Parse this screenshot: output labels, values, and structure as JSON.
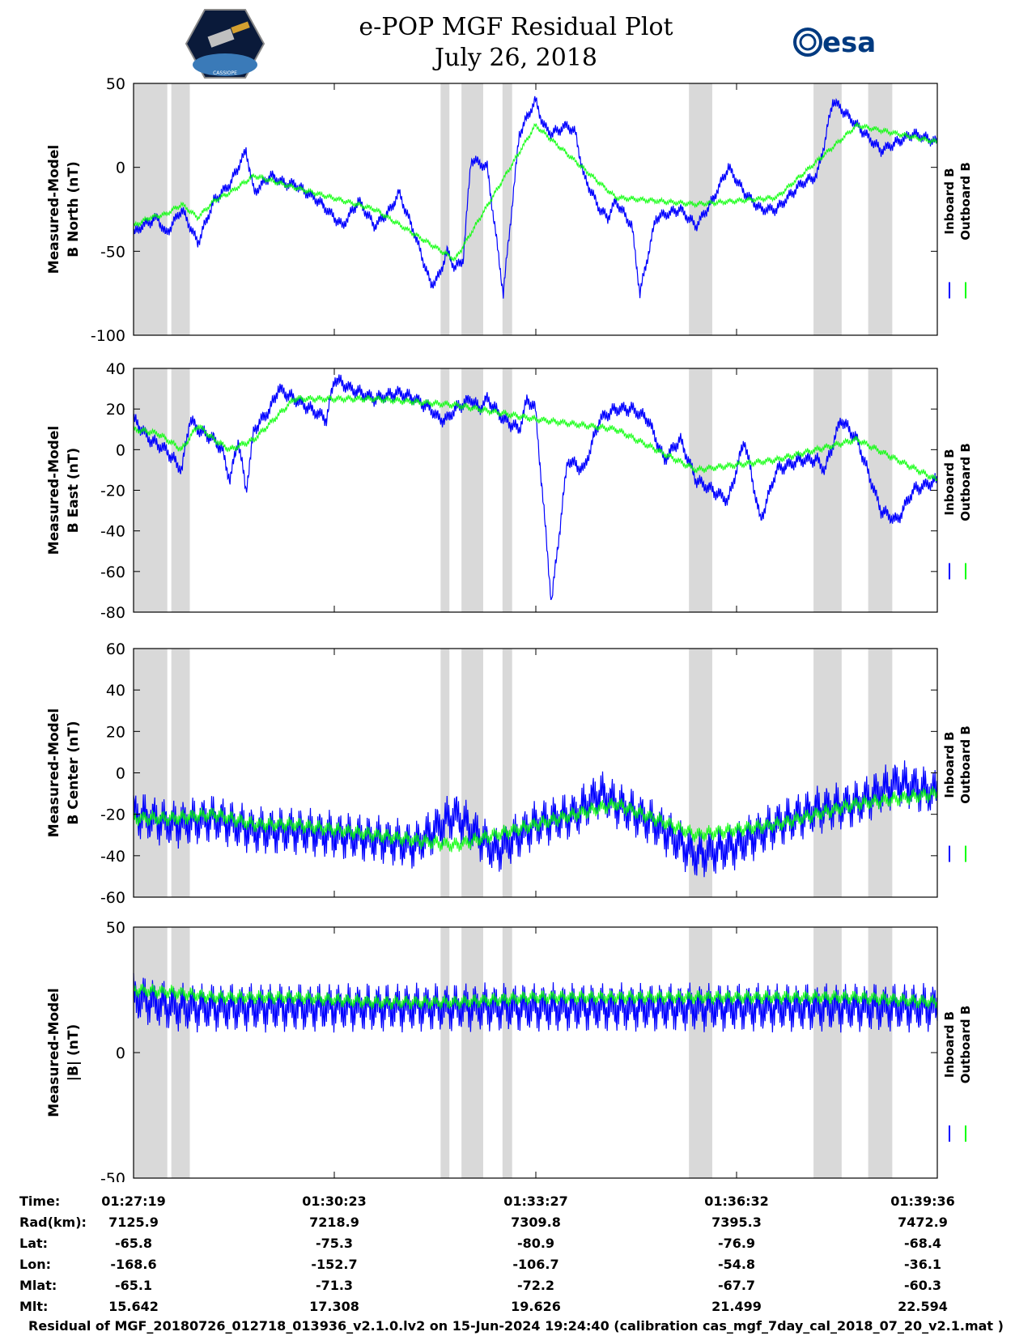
{
  "title": "e-POP MGF Residual Plot",
  "date": "July 26, 2018",
  "logo_left_text": "CASSIOPE",
  "logo_right_text": "esa",
  "colors": {
    "inboard": "#0000ff",
    "outboard": "#00ff00",
    "shade": "#d9d9d9",
    "axis": "#000000"
  },
  "legend": {
    "inboard": "Inboard B",
    "outboard": "Outboard B"
  },
  "chart_data": [
    {
      "type": "line",
      "ylabel_line1": "Measured-Model",
      "ylabel_line2": "B North (nT)",
      "ylim": [
        -100,
        50
      ],
      "yticks": [
        -100,
        -50,
        0,
        50
      ],
      "yticklabels": [
        "-100",
        "-50",
        "0",
        "50"
      ],
      "series": [
        {
          "name": "Inboard B",
          "x": [
            0,
            0.01,
            0.03,
            0.04,
            0.06,
            0.08,
            0.1,
            0.11,
            0.12,
            0.14,
            0.15,
            0.17,
            0.19,
            0.2,
            0.23,
            0.25,
            0.26,
            0.28,
            0.3,
            0.32,
            0.33,
            0.35,
            0.36,
            0.37,
            0.38,
            0.39,
            0.4,
            0.41,
            0.42,
            0.44,
            0.46,
            0.48,
            0.5,
            0.51,
            0.52,
            0.54,
            0.55,
            0.56,
            0.58,
            0.59,
            0.6,
            0.62,
            0.63,
            0.65,
            0.68,
            0.7,
            0.72,
            0.74,
            0.76,
            0.78,
            0.8,
            0.83,
            0.85,
            0.86,
            0.87,
            0.89,
            0.91,
            0.93,
            0.95,
            0.97,
            1.0
          ],
          "values": [
            -40,
            -35,
            -30,
            -40,
            -25,
            -45,
            -20,
            -15,
            -10,
            10,
            -15,
            -5,
            -10,
            -10,
            -20,
            -30,
            -35,
            -20,
            -35,
            -25,
            -15,
            -40,
            -55,
            -70,
            -65,
            -50,
            -60,
            -55,
            5,
            0,
            -75,
            20,
            40,
            25,
            20,
            25,
            20,
            -5,
            -25,
            -30,
            -20,
            -35,
            -75,
            -30,
            -25,
            -35,
            -20,
            0,
            -15,
            -25,
            -25,
            -10,
            -5,
            15,
            40,
            30,
            20,
            10,
            15,
            20,
            15
          ],
          "spread": 4
        },
        {
          "name": "Outboard B",
          "x": [
            0,
            0.02,
            0.04,
            0.06,
            0.08,
            0.1,
            0.12,
            0.15,
            0.2,
            0.3,
            0.4,
            0.5,
            0.6,
            0.7,
            0.8,
            0.9,
            1.0
          ],
          "values": [
            -35,
            -30,
            -28,
            -22,
            -30,
            -20,
            -15,
            -5,
            -12,
            -25,
            -55,
            25,
            -18,
            -22,
            -18,
            25,
            15
          ],
          "spread": 2
        }
      ]
    },
    {
      "type": "line",
      "ylabel_line1": "Measured-Model",
      "ylabel_line2": "B East (nT)",
      "ylim": [
        -80,
        40
      ],
      "yticks": [
        -80,
        -60,
        -40,
        -20,
        0,
        20,
        40
      ],
      "yticklabels": [
        "-80",
        "-60",
        "-40",
        "-20",
        "0",
        "20",
        "40"
      ],
      "series": [
        {
          "name": "Inboard B",
          "x": [
            0,
            0.02,
            0.04,
            0.06,
            0.07,
            0.08,
            0.1,
            0.11,
            0.12,
            0.13,
            0.14,
            0.15,
            0.17,
            0.18,
            0.2,
            0.22,
            0.24,
            0.25,
            0.27,
            0.3,
            0.33,
            0.35,
            0.37,
            0.38,
            0.39,
            0.4,
            0.42,
            0.43,
            0.44,
            0.46,
            0.48,
            0.49,
            0.5,
            0.52,
            0.54,
            0.56,
            0.58,
            0.6,
            0.62,
            0.64,
            0.66,
            0.68,
            0.7,
            0.72,
            0.74,
            0.76,
            0.78,
            0.8,
            0.83,
            0.85,
            0.86,
            0.88,
            0.9,
            0.93,
            0.95,
            0.97,
            1.0
          ],
          "values": [
            15,
            5,
            0,
            -10,
            15,
            10,
            5,
            0,
            -15,
            5,
            -20,
            10,
            20,
            30,
            25,
            20,
            15,
            35,
            30,
            25,
            28,
            25,
            20,
            15,
            15,
            20,
            25,
            20,
            25,
            15,
            10,
            25,
            20,
            -75,
            -5,
            -10,
            15,
            20,
            20,
            15,
            -5,
            5,
            -15,
            -20,
            -25,
            5,
            -35,
            -10,
            -5,
            -5,
            -10,
            15,
            5,
            -30,
            -35,
            -20,
            -15
          ],
          "spread": 4
        },
        {
          "name": "Outboard B",
          "x": [
            0,
            0.03,
            0.06,
            0.08,
            0.1,
            0.12,
            0.15,
            0.2,
            0.3,
            0.4,
            0.5,
            0.6,
            0.7,
            0.8,
            0.9,
            1.0
          ],
          "values": [
            10,
            8,
            0,
            12,
            5,
            0,
            5,
            25,
            25,
            22,
            15,
            10,
            -10,
            -5,
            5,
            -15
          ],
          "spread": 2
        }
      ]
    },
    {
      "type": "line",
      "ylabel_line1": "Measured-Model",
      "ylabel_line2": "B Center (nT)",
      "ylim": [
        -60,
        60
      ],
      "yticks": [
        -60,
        -40,
        -20,
        0,
        20,
        40,
        60
      ],
      "yticklabels": [
        "-60",
        "-40",
        "-20",
        "0",
        "20",
        "40",
        "60"
      ],
      "series": [
        {
          "name": "Inboard B",
          "x": [
            0,
            0.05,
            0.1,
            0.15,
            0.2,
            0.25,
            0.3,
            0.35,
            0.4,
            0.45,
            0.5,
            0.55,
            0.58,
            0.6,
            0.65,
            0.7,
            0.75,
            0.8,
            0.85,
            0.9,
            0.95,
            1.0
          ],
          "values": [
            -20,
            -25,
            -22,
            -28,
            -28,
            -30,
            -32,
            -35,
            -20,
            -38,
            -25,
            -20,
            -10,
            -15,
            -25,
            -40,
            -35,
            -25,
            -18,
            -15,
            -5,
            -10
          ],
          "spread": 12
        },
        {
          "name": "Outboard B",
          "x": [
            0,
            0.05,
            0.1,
            0.15,
            0.2,
            0.3,
            0.4,
            0.5,
            0.6,
            0.7,
            0.8,
            0.9,
            1.0
          ],
          "values": [
            -22,
            -22,
            -20,
            -25,
            -25,
            -30,
            -35,
            -25,
            -15,
            -30,
            -25,
            -15,
            -10
          ],
          "spread": 4
        }
      ]
    },
    {
      "type": "line",
      "ylabel_line1": "Measured-Model",
      "ylabel_line2": "|B| (nT)",
      "ylim": [
        -50,
        50
      ],
      "yticks": [
        -50,
        0,
        50
      ],
      "yticklabels": [
        "-50",
        "0",
        "50"
      ],
      "series": [
        {
          "name": "Inboard B",
          "x": [
            0,
            0.05,
            0.1,
            0.15,
            0.2,
            0.25,
            0.3,
            0.35,
            0.4,
            0.45,
            0.5,
            0.55,
            0.6,
            0.65,
            0.7,
            0.75,
            0.8,
            0.85,
            0.9,
            0.95,
            1.0
          ],
          "values": [
            22,
            18,
            18,
            18,
            18,
            18,
            18,
            18,
            18,
            18,
            18,
            18,
            18,
            18,
            18,
            18,
            18,
            18,
            18,
            18,
            18
          ],
          "spread": 10
        },
        {
          "name": "Outboard B",
          "x": [
            0,
            0.05,
            0.1,
            0.2,
            0.3,
            0.4,
            0.5,
            0.6,
            0.7,
            0.8,
            0.9,
            1.0
          ],
          "values": [
            25,
            24,
            22,
            22,
            20,
            20,
            22,
            22,
            22,
            22,
            22,
            20
          ],
          "spread": 3
        }
      ]
    }
  ],
  "shaded_regions": [
    [
      0.0,
      0.042
    ],
    [
      0.047,
      0.07
    ],
    [
      0.382,
      0.393
    ],
    [
      0.408,
      0.435
    ],
    [
      0.459,
      0.471
    ],
    [
      0.691,
      0.72
    ],
    [
      0.846,
      0.881
    ],
    [
      0.914,
      0.944
    ]
  ],
  "time_row": {
    "headers": [
      "Time:",
      "Rad(km):",
      "Lat:",
      "Lon:",
      "Mlat:",
      "Mlt:"
    ],
    "columns": [
      {
        "time": "01:27:19",
        "rad": "7125.9",
        "lat": "-65.8",
        "lon": "-168.6",
        "mlat": "-65.1",
        "mlt": "15.642"
      },
      {
        "time": "01:30:23",
        "rad": "7218.9",
        "lat": "-75.3",
        "lon": "-152.7",
        "mlat": "-71.3",
        "mlt": "17.308"
      },
      {
        "time": "01:33:27",
        "rad": "7309.8",
        "lat": "-80.9",
        "lon": "-106.7",
        "mlat": "-72.2",
        "mlt": "19.626"
      },
      {
        "time": "01:36:32",
        "rad": "7395.3",
        "lat": "-76.9",
        "lon": "-54.8",
        "mlat": "-67.7",
        "mlt": "21.499"
      },
      {
        "time": "01:39:36",
        "rad": "7472.9",
        "lat": "-68.4",
        "lon": "-36.1",
        "mlat": "-60.3",
        "mlt": "22.594"
      }
    ]
  },
  "footer": "Residual of MGF_20180726_012718_013936_v2.1.0.lv2 on 15-Jun-2024 19:24:40 (calibration cas_mgf_7day_cal_2018_07_20_v2.1.mat )"
}
